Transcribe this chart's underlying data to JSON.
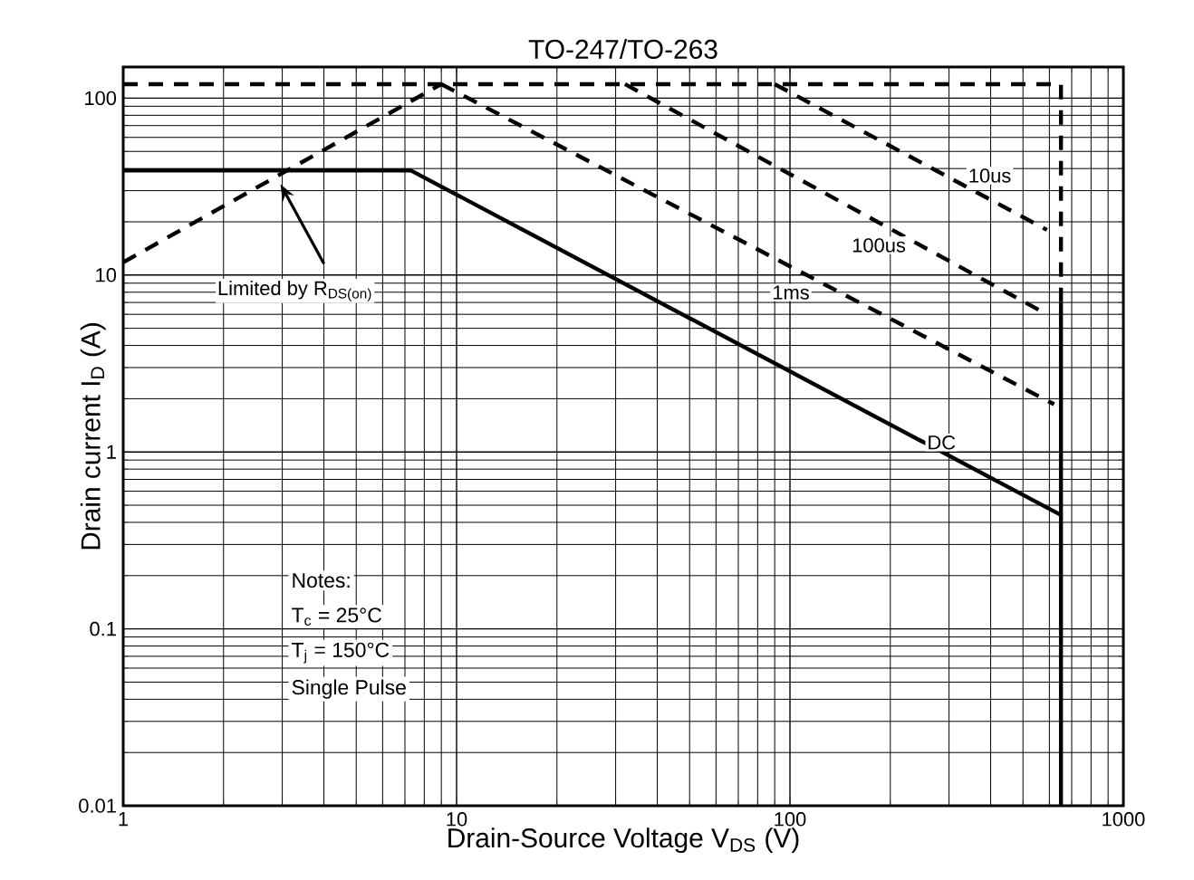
{
  "chart_data": {
    "type": "line",
    "title": "TO-247/TO-263",
    "xlabel": "Drain-Source Voltage V$_{DS}$ (V)",
    "ylabel": "Drain current I$_{D}$ (A)",
    "log": "xy",
    "grid": true,
    "marker": "none",
    "xlim": [
      1,
      1000
    ],
    "ylim": [
      0.01,
      150
    ],
    "xticks": [
      1,
      10,
      100,
      1000
    ],
    "yticks": [
      0.01,
      0.1,
      1,
      10,
      100
    ],
    "series": [
      {
        "name": "Limited by R$_{DS(on)}$",
        "line_style": "dashed",
        "color": "#000000",
        "x": [
          1,
          9
        ],
        "values": [
          11.8,
          120
        ]
      },
      {
        "line_style": "dashed",
        "color": "#000000",
        "x": [
          1,
          650,
          650
        ],
        "values": [
          120,
          120,
          7
        ]
      },
      {
        "name": "10us",
        "line_style": "dashed",
        "color": "#000000",
        "x": [
          90,
          590
        ],
        "values": [
          120,
          18
        ]
      },
      {
        "name": "100us",
        "line_style": "dashed",
        "color": "#000000",
        "x": [
          32,
          590
        ],
        "values": [
          120,
          6.0
        ]
      },
      {
        "name": "1ms",
        "line_style": "dashed",
        "color": "#000000",
        "x": [
          9,
          620
        ],
        "values": [
          120,
          1.86
        ]
      },
      {
        "name": "DC",
        "line_style": "solid",
        "color": "#000000",
        "x": [
          1,
          7.3,
          650
        ],
        "values": [
          39,
          39,
          0.44
        ]
      },
      {
        "line_style": "solid",
        "color": "#000000",
        "x": [
          650,
          650
        ],
        "values": [
          7,
          0.01
        ]
      }
    ],
    "annotations": [
      "Notes:",
      "T$_{c}$ = 25°C",
      "T$_{j}$ = 150°C",
      "Single Pulse"
    ]
  }
}
